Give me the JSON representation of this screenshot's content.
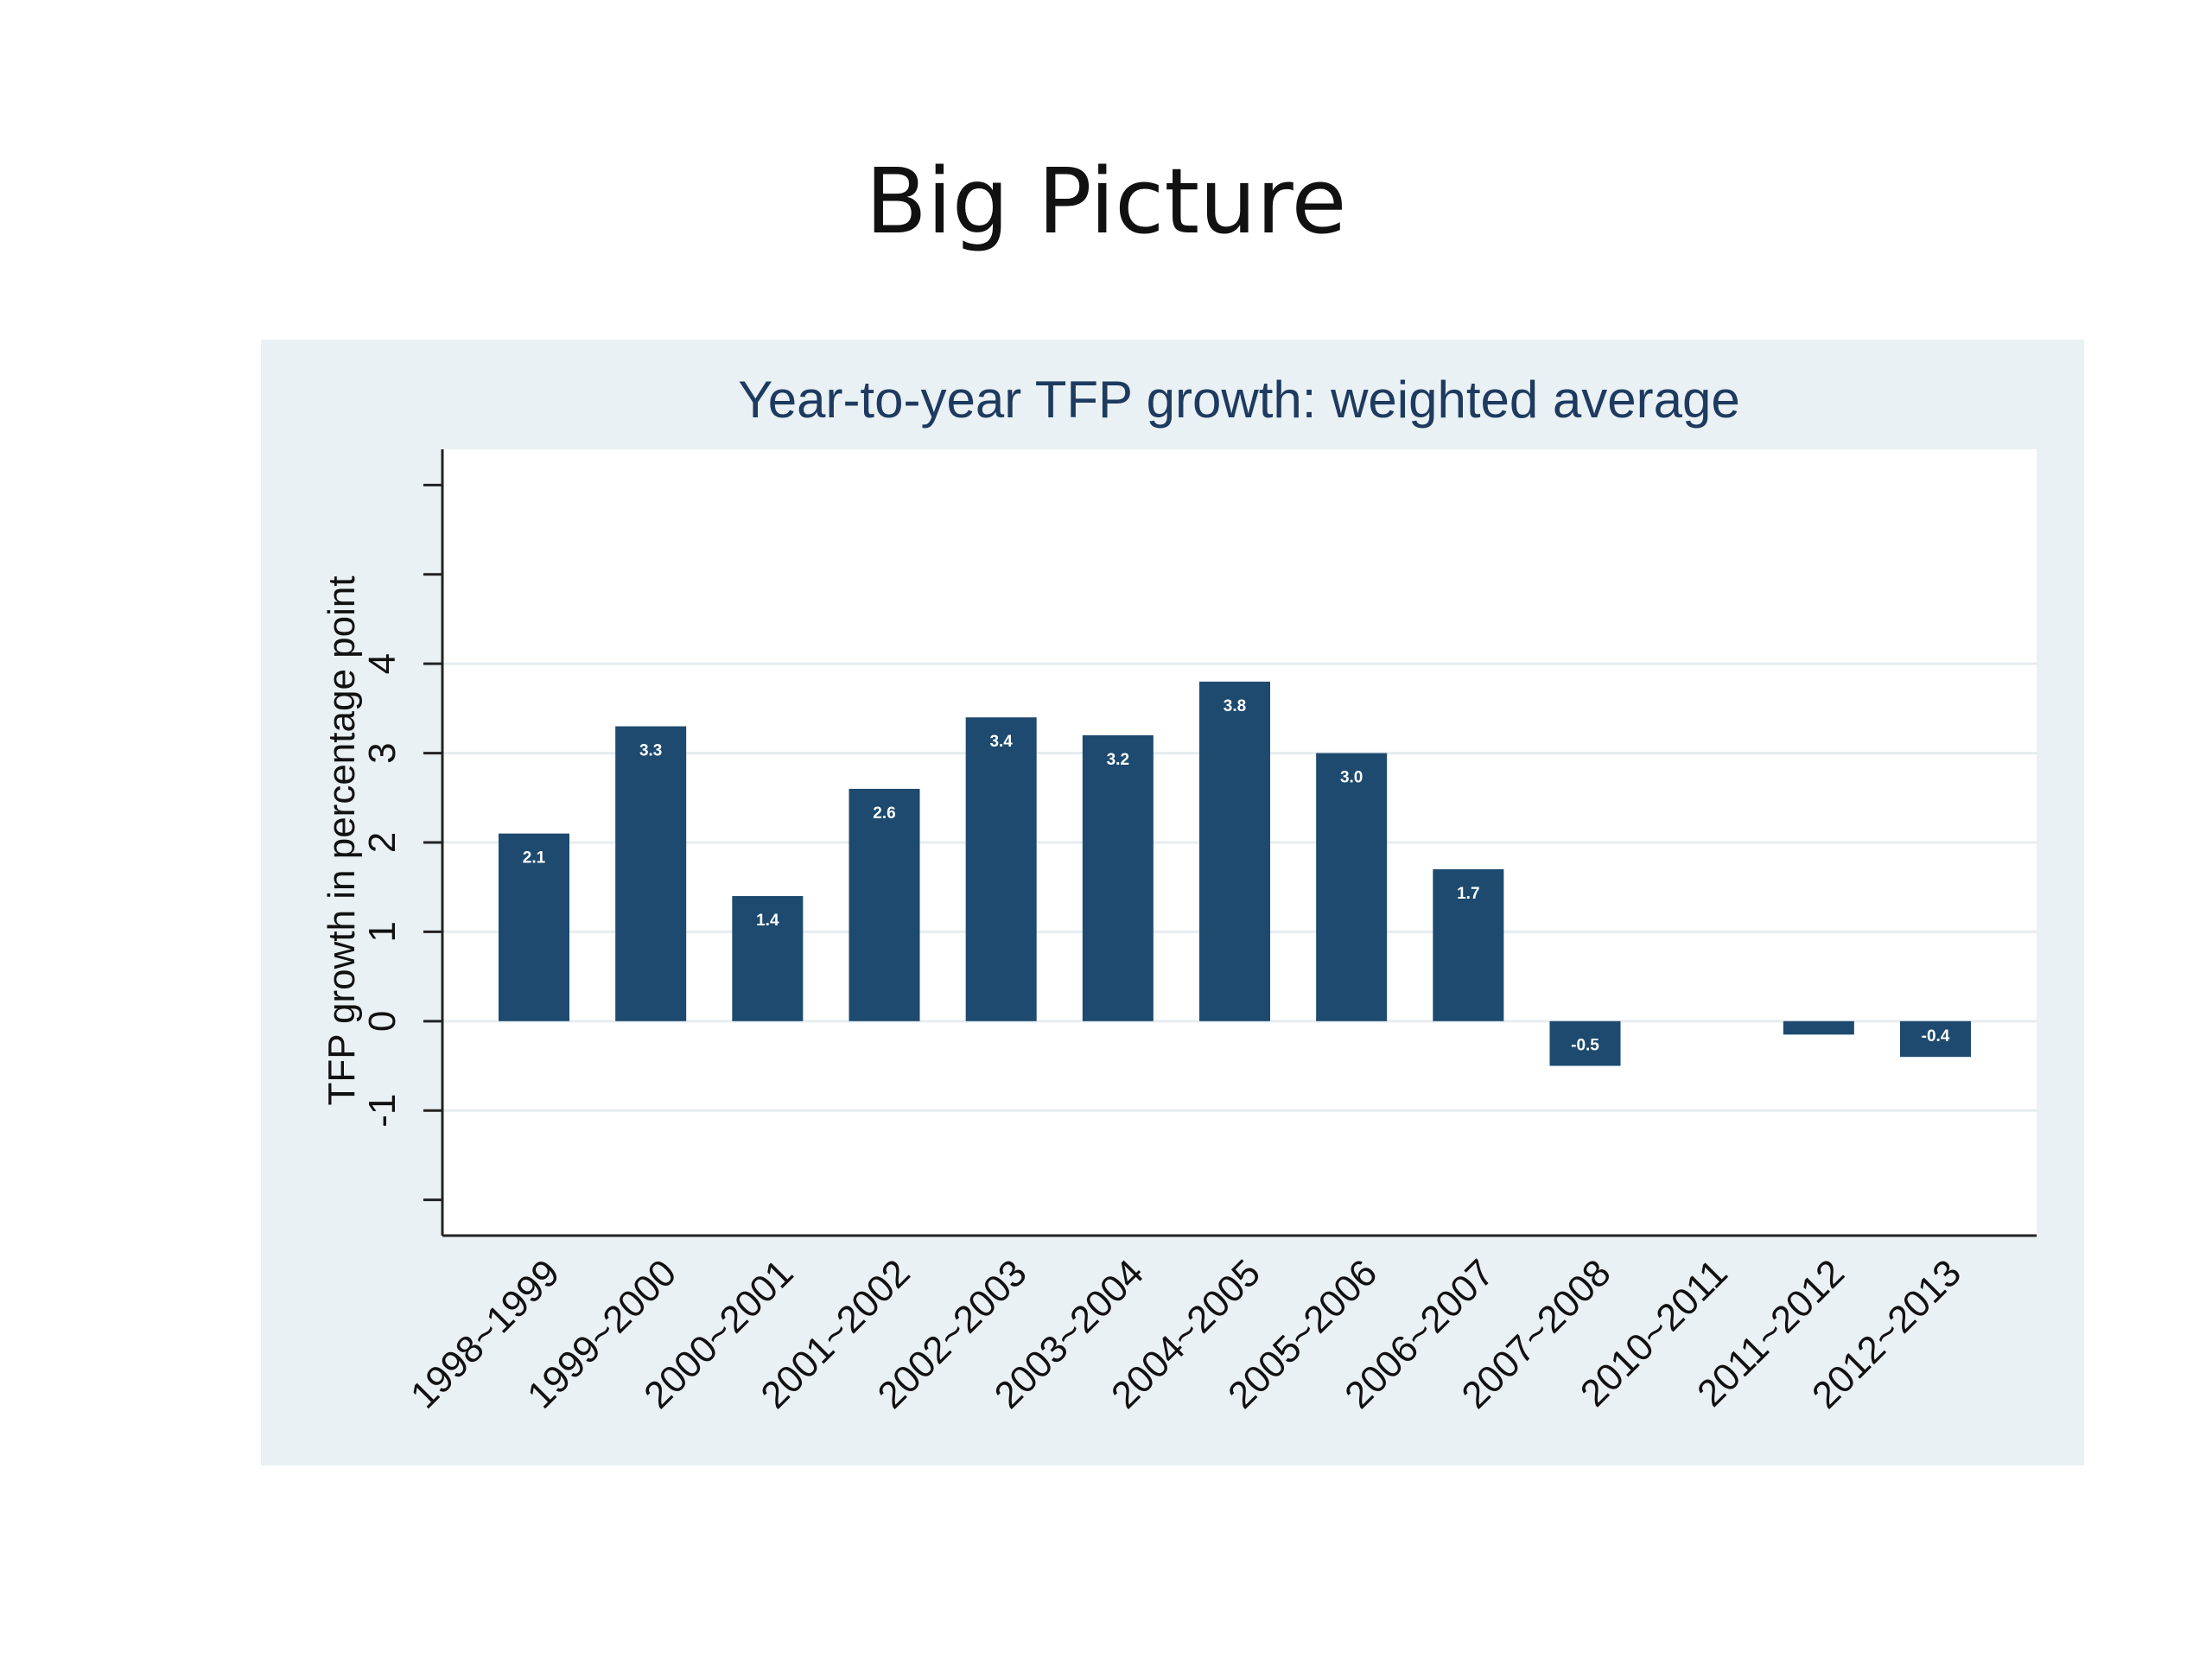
{
  "slide": {
    "title": "Big Picture"
  },
  "chart_data": {
    "type": "bar",
    "title": "Year-to-year TFP growth: weighted average",
    "xlabel": "",
    "ylabel": "TFP growth in percentage point",
    "ylim": [
      -2.4,
      6.4
    ],
    "yticks": [
      -1,
      0,
      1,
      2,
      3,
      4
    ],
    "grid": true,
    "categories": [
      "1998~1999",
      "1999~2000",
      "2000~2001",
      "2001~2002",
      "2002~2003",
      "2003~2004",
      "2004~2005",
      "2005~2006",
      "2006~2007",
      "2007~2008",
      "2010~2011",
      "2011~2012",
      "2012~2013"
    ],
    "values": [
      2.1,
      3.3,
      1.4,
      2.6,
      3.4,
      3.2,
      3.8,
      3.0,
      1.7,
      -0.5,
      0.0,
      -0.15,
      -0.4
    ],
    "data_labels": [
      "2.1",
      "3.3",
      "1.4",
      "2.6",
      "3.4",
      "3.2",
      "3.8",
      "3.0",
      "1.7",
      "-0.5",
      "",
      "",
      "-0.4"
    ],
    "colors": {
      "bar": "#1d4a6e",
      "bar_label": "#ffffff",
      "panel": "#eaf1f4",
      "plot": "#ffffff",
      "grid": "#e6edf0",
      "axis": "#222222",
      "title": "#1e3a5f"
    }
  }
}
